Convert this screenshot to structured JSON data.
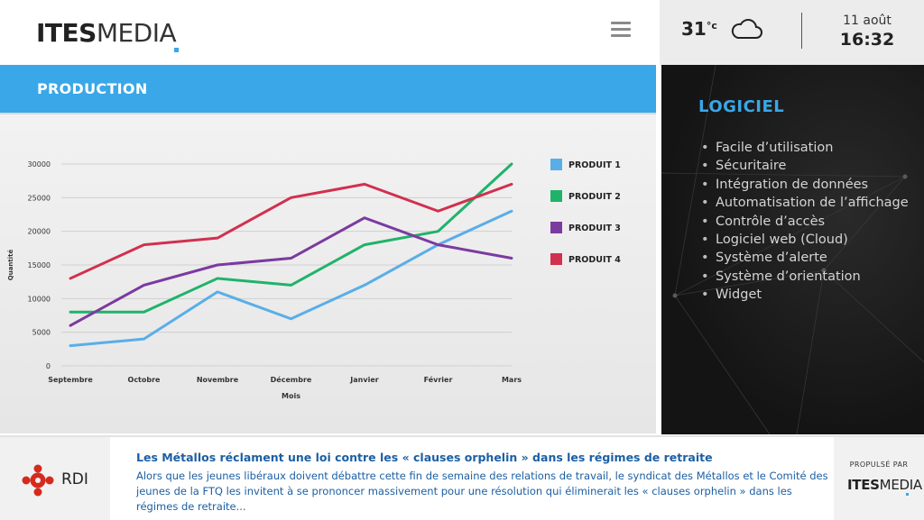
{
  "header": {
    "logo_bold": "ITES",
    "logo_light": "MEDIA",
    "menu_icon": "hamburger-menu-icon",
    "weather": {
      "temp": "31",
      "unit": "°c",
      "icon": "cloud-icon"
    },
    "date": "11 août",
    "time": "16:32"
  },
  "production": {
    "title": "PRODUCTION"
  },
  "chart_data": {
    "type": "line",
    "title": "",
    "xlabel": "Mois",
    "ylabel": "Quantité",
    "ylim": [
      0,
      30000
    ],
    "yticks": [
      "0",
      "5000",
      "10000",
      "15000",
      "20000",
      "25000",
      "30000"
    ],
    "ytick_values": [
      0,
      5000,
      10000,
      15000,
      20000,
      25000,
      30000
    ],
    "categories": [
      "Septembre",
      "Octobre",
      "Novembre",
      "Décembre",
      "Janvier",
      "Février",
      "Mars"
    ],
    "grid": "horizontal",
    "legend_position": "right",
    "series": [
      {
        "name": "PRODUIT 1",
        "color": "#59aee8",
        "values": [
          3000,
          4000,
          11000,
          7000,
          12000,
          18000,
          23000
        ]
      },
      {
        "name": "PRODUIT 2",
        "color": "#1fb36a",
        "values": [
          8000,
          8000,
          13000,
          12000,
          18000,
          20000,
          30000
        ]
      },
      {
        "name": "PRODUIT 3",
        "color": "#7b3aa0",
        "values": [
          6000,
          12000,
          15000,
          16000,
          22000,
          18000,
          16000
        ]
      },
      {
        "name": "PRODUIT 4",
        "color": "#d1304f",
        "values": [
          13000,
          18000,
          19000,
          25000,
          27000,
          23000,
          27000
        ]
      }
    ]
  },
  "logiciel": {
    "title": "LOGICIEL",
    "items": [
      "Facile d’utilisation",
      "Sécuritaire",
      "Intégration de données",
      "Automatisation de l’affichage",
      "Contrôle d’accès",
      "Logiciel web (Cloud)",
      "Système d’alerte",
      "Système d’orientation",
      "Widget"
    ]
  },
  "footer": {
    "source_label": "RDI",
    "source_icon": "cbc-gem-icon",
    "news_title": "Les Métallos réclament une loi contre les « clauses orphelin » dans les régimes de retraite",
    "news_body": "Alors que les jeunes libéraux doivent débattre cette fin de semaine des relations de travail, le syndicat des Métallos et le Comité des jeunes de la FTQ les invitent à se prononcer massivement pour une résolution qui éliminerait les « clauses orphelin » dans les régimes de retraite...",
    "powered_label": "PROPULSÉ PAR",
    "powered_logo_bold": "ITES",
    "powered_logo_light": "MEDIA"
  }
}
